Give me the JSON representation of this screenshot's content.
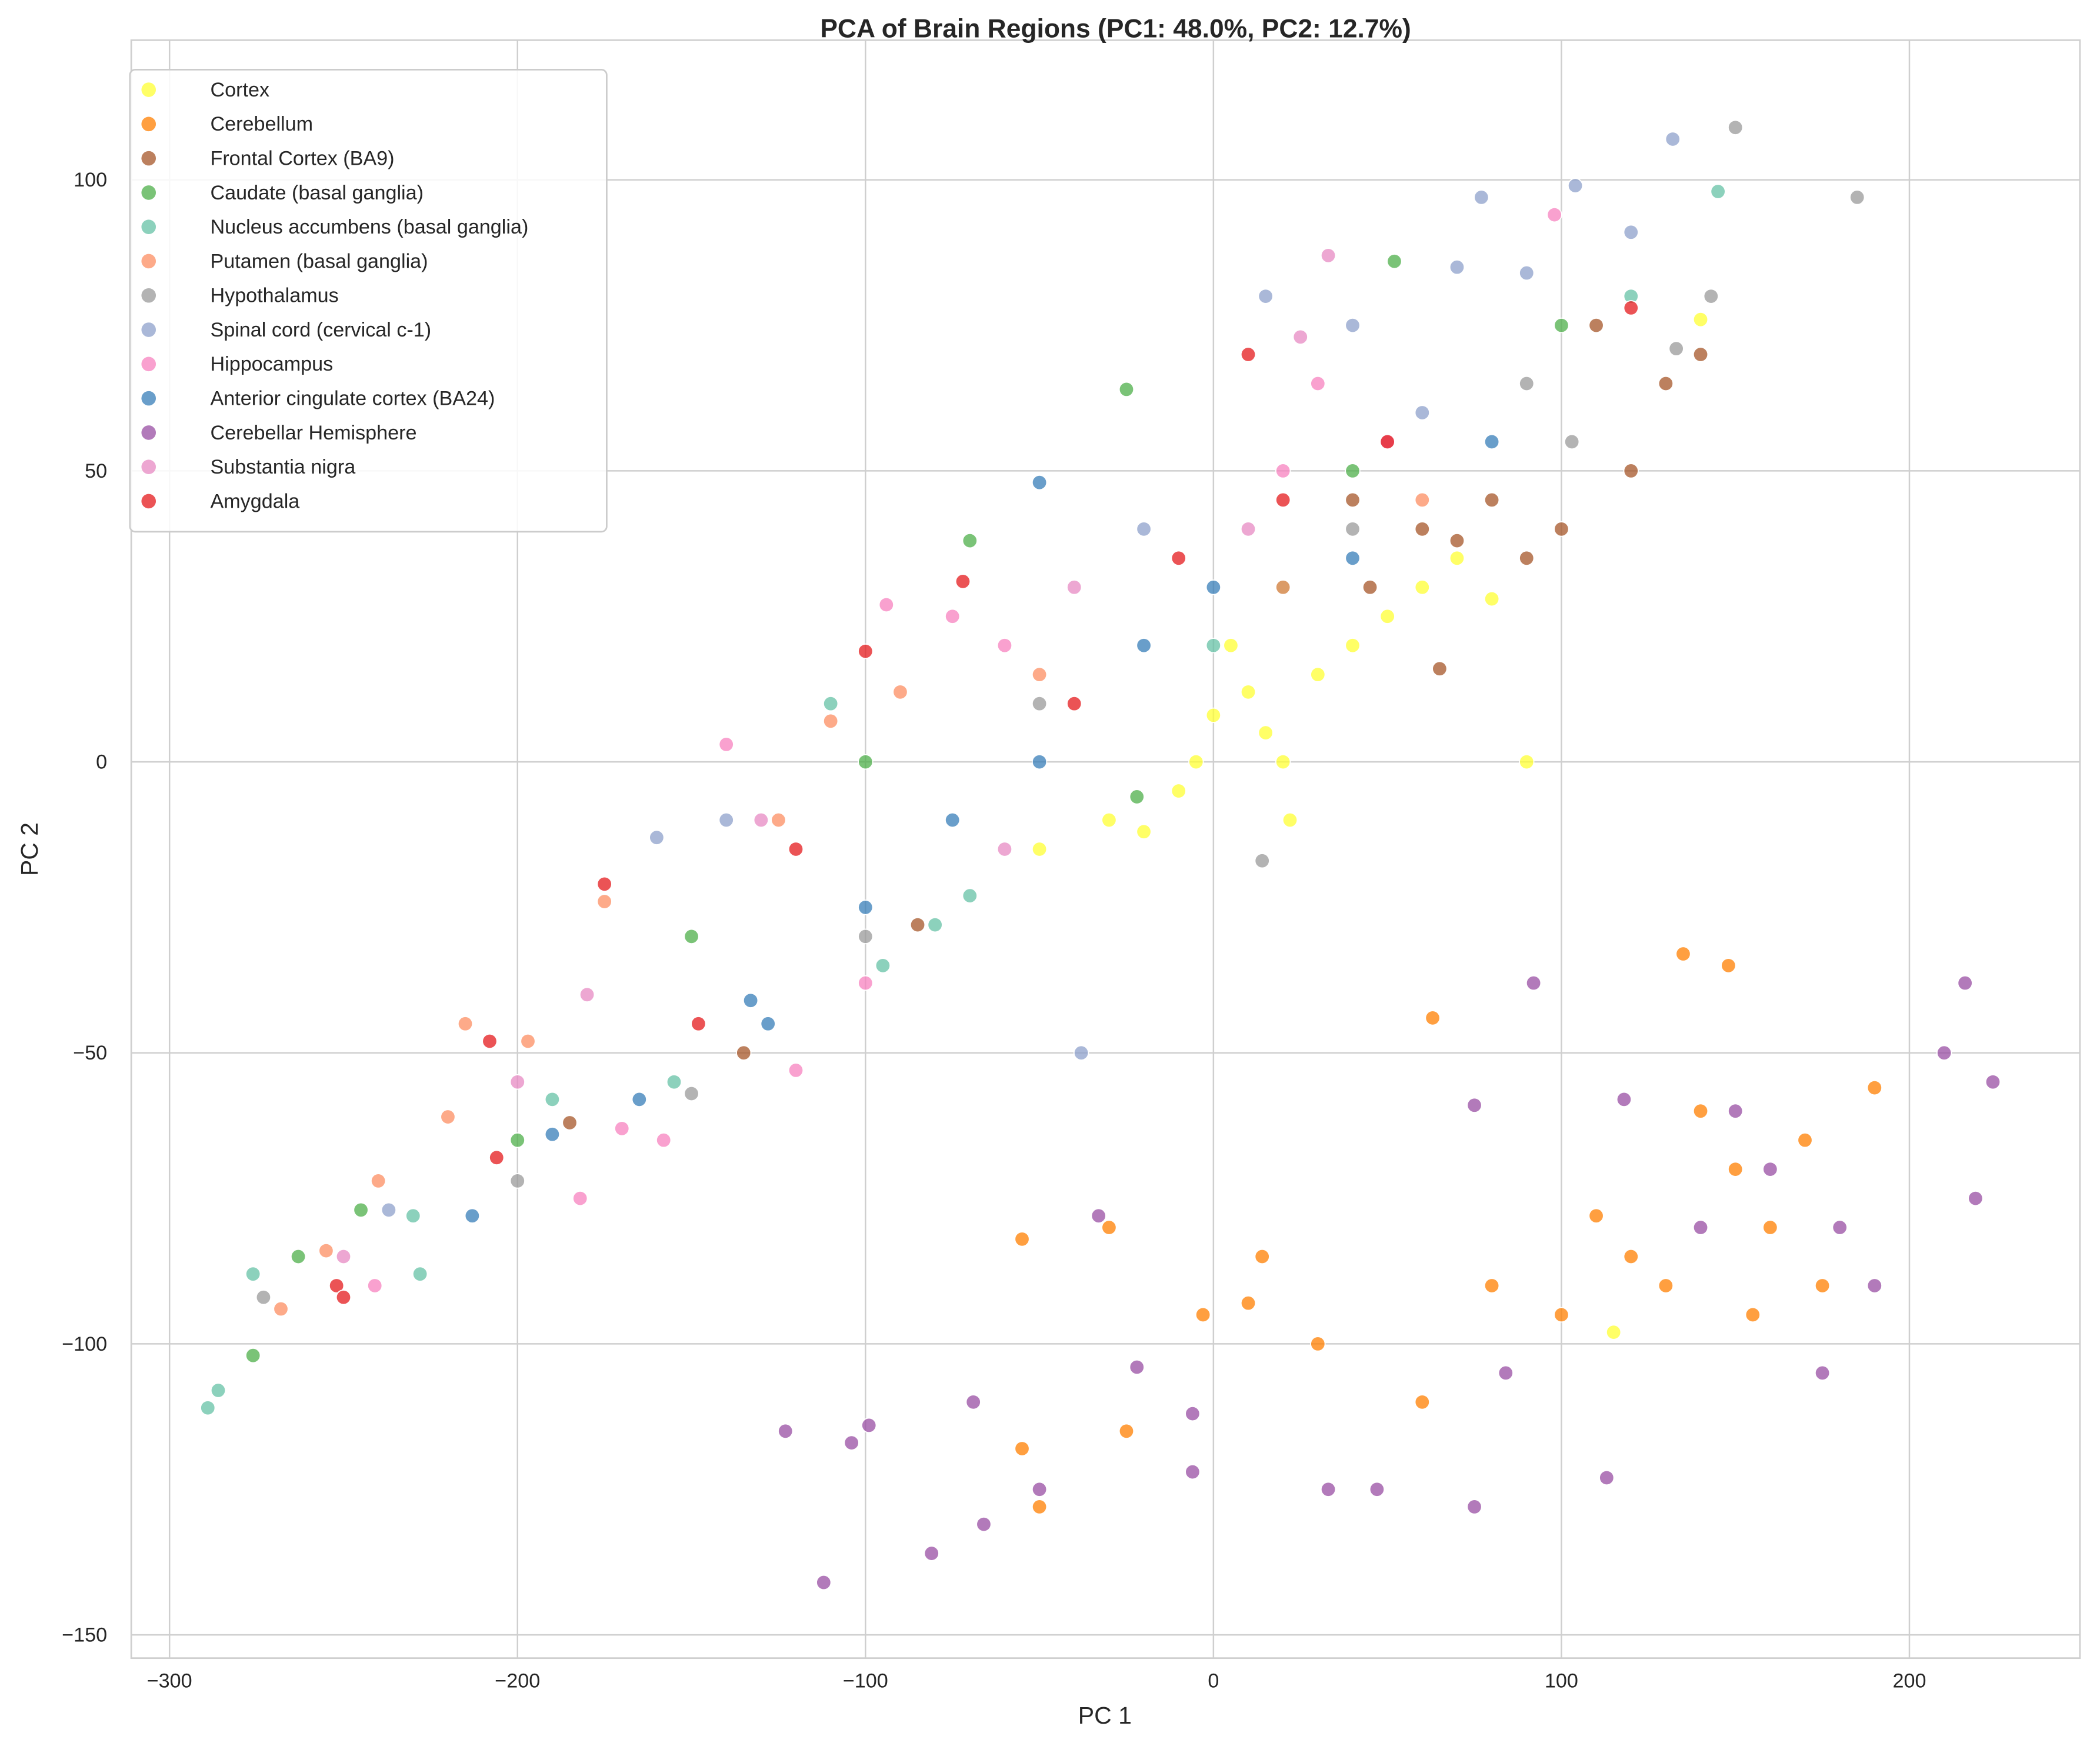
{
  "chart_data": {
    "type": "scatter",
    "title": "PCA of Brain Regions (PC1: 48.0%, PC2: 12.7%)",
    "xlabel": "PC 1",
    "ylabel": "PC 2",
    "xlim": [
      -311,
      249
    ],
    "ylim": [
      -154,
      124
    ],
    "xticks": [
      -300,
      -200,
      -100,
      0,
      100,
      200
    ],
    "xtick_labels": [
      "−300",
      "−200",
      "−100",
      "0",
      "100",
      "200"
    ],
    "yticks": [
      -150,
      -100,
      -50,
      0,
      50,
      100
    ],
    "ytick_labels": [
      "−150",
      "−100",
      "−50",
      "0",
      "50",
      "100"
    ],
    "grid": true,
    "legend_position": "top-left",
    "series": [
      {
        "name": "Cortex",
        "color": "#ffff33",
        "points": [
          [
            0,
            8
          ],
          [
            10,
            12
          ],
          [
            20,
            0
          ],
          [
            30,
            15
          ],
          [
            40,
            20
          ],
          [
            50,
            25
          ],
          [
            60,
            30
          ],
          [
            70,
            35
          ],
          [
            90,
            0
          ],
          [
            -10,
            -5
          ],
          [
            -30,
            -10
          ],
          [
            -50,
            -15
          ],
          [
            22,
            -10
          ],
          [
            -20,
            -12
          ],
          [
            140,
            76
          ],
          [
            115,
            -98
          ],
          [
            80,
            28
          ],
          [
            5,
            20
          ],
          [
            -5,
            0
          ],
          [
            15,
            5
          ]
        ]
      },
      {
        "name": "Cerebellum",
        "color": "#ff7f00",
        "points": [
          [
            150,
            -70
          ],
          [
            160,
            -80
          ],
          [
            140,
            -60
          ],
          [
            170,
            -65
          ],
          [
            130,
            -90
          ],
          [
            120,
            -85
          ],
          [
            100,
            -95
          ],
          [
            80,
            -90
          ],
          [
            60,
            -110
          ],
          [
            30,
            -100
          ],
          [
            10,
            -93
          ],
          [
            -25,
            -115
          ],
          [
            -50,
            -128
          ],
          [
            -55,
            -118
          ],
          [
            -30,
            -80
          ],
          [
            -55,
            -82
          ],
          [
            63,
            -44
          ],
          [
            135,
            -33
          ],
          [
            148,
            -35
          ],
          [
            190,
            -56
          ],
          [
            110,
            -78
          ],
          [
            175,
            -90
          ],
          [
            155,
            -95
          ],
          [
            -3,
            -95
          ],
          [
            14,
            -85
          ]
        ]
      },
      {
        "name": "Frontal Cortex (BA9)",
        "color": "#a65628",
        "points": [
          [
            60,
            40
          ],
          [
            80,
            45
          ],
          [
            100,
            40
          ],
          [
            120,
            50
          ],
          [
            140,
            70
          ],
          [
            130,
            65
          ],
          [
            90,
            35
          ],
          [
            70,
            38
          ],
          [
            45,
            30
          ],
          [
            -85,
            -28
          ],
          [
            -135,
            -50
          ],
          [
            -185,
            -62
          ],
          [
            65,
            16
          ],
          [
            110,
            75
          ],
          [
            40,
            45
          ]
        ]
      },
      {
        "name": "Caudate (basal ganglia)",
        "color": "#4daf4a",
        "points": [
          [
            -25,
            64
          ],
          [
            52,
            86
          ],
          [
            -70,
            38
          ],
          [
            -100,
            0
          ],
          [
            -150,
            -30
          ],
          [
            -200,
            -65
          ],
          [
            -245,
            -77
          ],
          [
            -263,
            -85
          ],
          [
            -276,
            -102
          ],
          [
            20,
            30
          ],
          [
            40,
            50
          ],
          [
            -22,
            -6
          ],
          [
            100,
            75
          ]
        ]
      },
      {
        "name": "Nucleus accumbens (basal ganglia)",
        "color": "#66c2a5",
        "points": [
          [
            -289,
            -111
          ],
          [
            -286,
            -108
          ],
          [
            -276,
            -88
          ],
          [
            -228,
            -88
          ],
          [
            -230,
            -78
          ],
          [
            -190,
            -58
          ],
          [
            -155,
            -55
          ],
          [
            -95,
            -35
          ],
          [
            -80,
            -28
          ],
          [
            -110,
            10
          ],
          [
            145,
            98
          ],
          [
            120,
            80
          ],
          [
            0,
            20
          ],
          [
            -70,
            -23
          ]
        ]
      },
      {
        "name": "Putamen (basal ganglia)",
        "color": "#fc8d62",
        "points": [
          [
            -268,
            -94
          ],
          [
            -255,
            -84
          ],
          [
            -240,
            -72
          ],
          [
            -220,
            -61
          ],
          [
            -197,
            -48
          ],
          [
            -175,
            -24
          ],
          [
            -125,
            -10
          ],
          [
            -110,
            7
          ],
          [
            -90,
            12
          ],
          [
            -50,
            15
          ],
          [
            20,
            30
          ],
          [
            60,
            45
          ],
          [
            -215,
            -45
          ]
        ]
      },
      {
        "name": "Hypothalamus",
        "color": "#999999",
        "points": [
          [
            150,
            109
          ],
          [
            185,
            97
          ],
          [
            143,
            80
          ],
          [
            133,
            71
          ],
          [
            103,
            55
          ],
          [
            14,
            -17
          ],
          [
            -150,
            -57
          ],
          [
            -200,
            -72
          ],
          [
            -273,
            -92
          ],
          [
            -100,
            -30
          ],
          [
            -50,
            10
          ],
          [
            40,
            40
          ],
          [
            90,
            65
          ]
        ]
      },
      {
        "name": "Spinal cord (cervical c-1)",
        "color": "#8da0cb",
        "points": [
          [
            132,
            107
          ],
          [
            104,
            99
          ],
          [
            120,
            91
          ],
          [
            77,
            97
          ],
          [
            15,
            80
          ],
          [
            40,
            75
          ],
          [
            70,
            85
          ],
          [
            -38,
            -50
          ],
          [
            -160,
            -13
          ],
          [
            -237,
            -77
          ],
          [
            -140,
            -10
          ],
          [
            90,
            84
          ],
          [
            60,
            60
          ],
          [
            -20,
            40
          ]
        ]
      },
      {
        "name": "Hippocampus",
        "color": "#f781bf",
        "points": [
          [
            98,
            94
          ],
          [
            -140,
            3
          ],
          [
            -75,
            25
          ],
          [
            -94,
            27
          ],
          [
            -120,
            -53
          ],
          [
            -170,
            -63
          ],
          [
            -158,
            -65
          ],
          [
            -182,
            -75
          ],
          [
            -241,
            -90
          ],
          [
            -100,
            -38
          ],
          [
            30,
            65
          ],
          [
            -60,
            20
          ],
          [
            20,
            50
          ]
        ]
      },
      {
        "name": "Anterior cingulate cortex (BA24)",
        "color": "#377eb8",
        "points": [
          [
            -50,
            48
          ],
          [
            -213,
            -78
          ],
          [
            -190,
            -64
          ],
          [
            -165,
            -58
          ],
          [
            -133,
            -41
          ],
          [
            -128,
            -45
          ],
          [
            -100,
            -25
          ],
          [
            -50,
            0
          ],
          [
            -20,
            20
          ],
          [
            0,
            30
          ],
          [
            40,
            35
          ],
          [
            80,
            55
          ],
          [
            -75,
            -10
          ]
        ]
      },
      {
        "name": "Cerebellar Hemisphere",
        "color": "#984ea3",
        "points": [
          [
            -112,
            -141
          ],
          [
            -81,
            -136
          ],
          [
            -66,
            -131
          ],
          [
            -123,
            -115
          ],
          [
            -104,
            -117
          ],
          [
            -99,
            -114
          ],
          [
            -69,
            -110
          ],
          [
            -50,
            -125
          ],
          [
            -33,
            -78
          ],
          [
            -22,
            -104
          ],
          [
            -6,
            -122
          ],
          [
            -6,
            -112
          ],
          [
            33,
            -125
          ],
          [
            47,
            -125
          ],
          [
            75,
            -128
          ],
          [
            92,
            -38
          ],
          [
            75,
            -59
          ],
          [
            113,
            -123
          ],
          [
            160,
            -70
          ],
          [
            180,
            -80
          ],
          [
            216,
            -38
          ],
          [
            224,
            -55
          ],
          [
            219,
            -75
          ],
          [
            210,
            -50
          ],
          [
            150,
            -60
          ],
          [
            140,
            -80
          ],
          [
            190,
            -90
          ],
          [
            175,
            -105
          ],
          [
            118,
            -58
          ],
          [
            84,
            -105
          ]
        ]
      },
      {
        "name": "Substantia nigra",
        "color": "#e78ac3",
        "points": [
          [
            33,
            87
          ],
          [
            25,
            73
          ],
          [
            -40,
            30
          ],
          [
            -130,
            -10
          ],
          [
            -200,
            -55
          ],
          [
            -250,
            -85
          ],
          [
            -60,
            -15
          ],
          [
            10,
            40
          ],
          [
            50,
            55
          ],
          [
            -180,
            -40
          ]
        ]
      },
      {
        "name": "Amygdala",
        "color": "#e41a1c",
        "points": [
          [
            120,
            78
          ],
          [
            10,
            70
          ],
          [
            -175,
            -21
          ],
          [
            -208,
            -48
          ],
          [
            -252,
            -90
          ],
          [
            -250,
            -92
          ],
          [
            -206,
            -68
          ],
          [
            -148,
            -45
          ],
          [
            -100,
            19
          ],
          [
            -72,
            31
          ],
          [
            -40,
            10
          ],
          [
            -10,
            35
          ],
          [
            20,
            45
          ],
          [
            50,
            55
          ],
          [
            -120,
            -15
          ]
        ]
      }
    ]
  }
}
